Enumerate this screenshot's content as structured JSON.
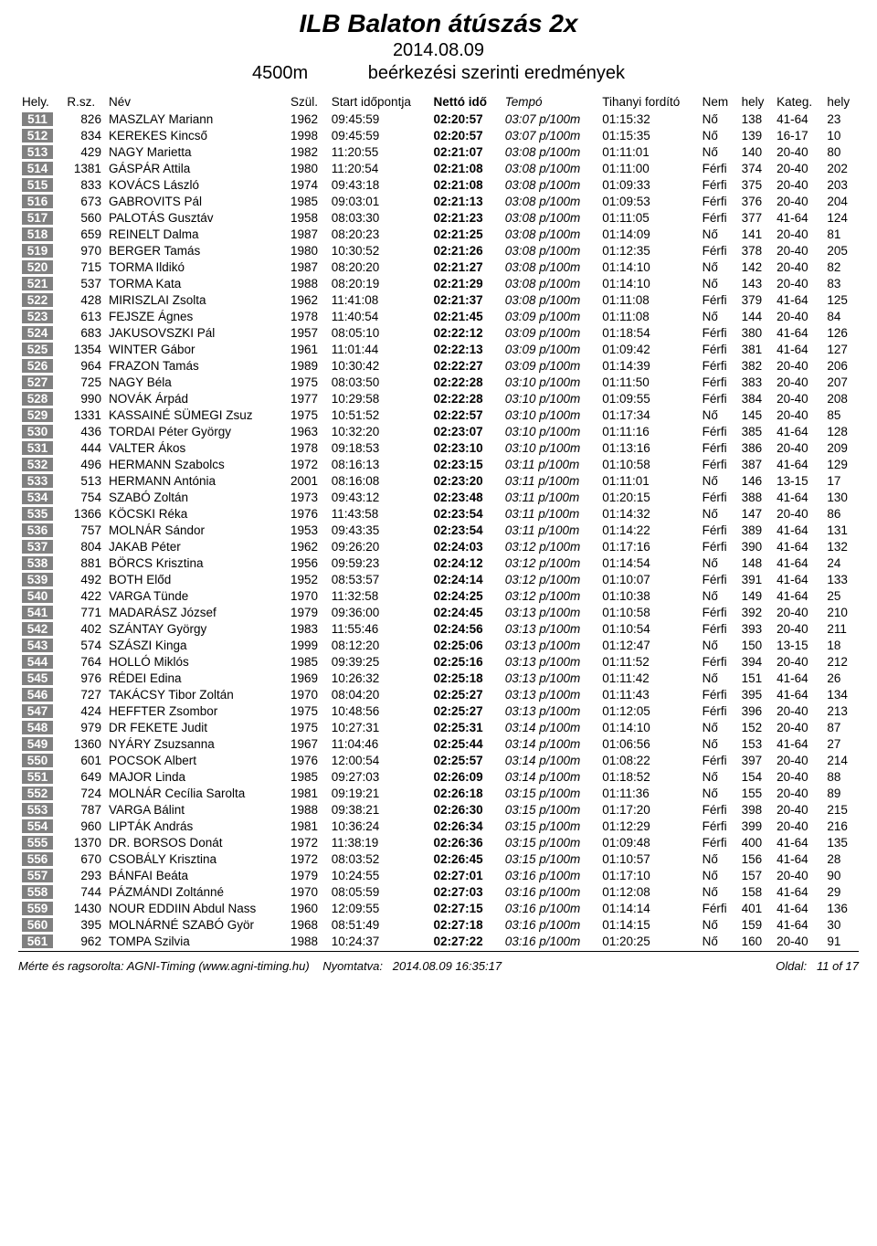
{
  "header": {
    "title": "ILB Balaton átúszás 2x",
    "date": "2014.08.09",
    "distance": "4500m",
    "subtitle": "beérkezési szerinti eredmények"
  },
  "columns": {
    "hely": "Hely.",
    "rsz": "R.sz.",
    "nev": "Név",
    "szul": "Szül.",
    "start": "Start időpontja",
    "netto": "Nettó idő",
    "tempo": "Tempó",
    "tihanyi": "Tihanyi fordító",
    "nem": "Nem",
    "helykat": "hely",
    "kateg": "Kateg.",
    "kateghely": "hely"
  },
  "styling": {
    "badge_bg": "#808080",
    "badge_fg": "#ffffff",
    "body_bg": "#ffffff",
    "text_color": "#000000",
    "title_fontsize": 28,
    "row_fontsize": 13.5,
    "font_family": "Arial"
  },
  "rows": [
    {
      "p": "511",
      "r": "826",
      "n": "MASZLAY Mariann",
      "y": "1962",
      "s": "09:45:59",
      "net": "02:20:57",
      "tmp": "03:07 p/100m",
      "ti": "01:15:32",
      "sex": "Nő",
      "sh": "138",
      "k": "41-64",
      "kh": "23"
    },
    {
      "p": "512",
      "r": "834",
      "n": "KEREKES Kincső",
      "y": "1998",
      "s": "09:45:59",
      "net": "02:20:57",
      "tmp": "03:07 p/100m",
      "ti": "01:15:35",
      "sex": "Nő",
      "sh": "139",
      "k": "16-17",
      "kh": "10"
    },
    {
      "p": "513",
      "r": "429",
      "n": "NAGY Marietta",
      "y": "1982",
      "s": "11:20:55",
      "net": "02:21:07",
      "tmp": "03:08 p/100m",
      "ti": "01:11:01",
      "sex": "Nő",
      "sh": "140",
      "k": "20-40",
      "kh": "80"
    },
    {
      "p": "514",
      "r": "1381",
      "n": "GÁSPÁR Attila",
      "y": "1980",
      "s": "11:20:54",
      "net": "02:21:08",
      "tmp": "03:08 p/100m",
      "ti": "01:11:00",
      "sex": "Férfi",
      "sh": "374",
      "k": "20-40",
      "kh": "202"
    },
    {
      "p": "515",
      "r": "833",
      "n": "KOVÁCS László",
      "y": "1974",
      "s": "09:43:18",
      "net": "02:21:08",
      "tmp": "03:08 p/100m",
      "ti": "01:09:33",
      "sex": "Férfi",
      "sh": "375",
      "k": "20-40",
      "kh": "203"
    },
    {
      "p": "516",
      "r": "673",
      "n": "GABROVITS Pál",
      "y": "1985",
      "s": "09:03:01",
      "net": "02:21:13",
      "tmp": "03:08 p/100m",
      "ti": "01:09:53",
      "sex": "Férfi",
      "sh": "376",
      "k": "20-40",
      "kh": "204"
    },
    {
      "p": "517",
      "r": "560",
      "n": "PALOTÁS Gusztáv",
      "y": "1958",
      "s": "08:03:30",
      "net": "02:21:23",
      "tmp": "03:08 p/100m",
      "ti": "01:11:05",
      "sex": "Férfi",
      "sh": "377",
      "k": "41-64",
      "kh": "124"
    },
    {
      "p": "518",
      "r": "659",
      "n": "REINELT Dalma",
      "y": "1987",
      "s": "08:20:23",
      "net": "02:21:25",
      "tmp": "03:08 p/100m",
      "ti": "01:14:09",
      "sex": "Nő",
      "sh": "141",
      "k": "20-40",
      "kh": "81"
    },
    {
      "p": "519",
      "r": "970",
      "n": "BERGER Tamás",
      "y": "1980",
      "s": "10:30:52",
      "net": "02:21:26",
      "tmp": "03:08 p/100m",
      "ti": "01:12:35",
      "sex": "Férfi",
      "sh": "378",
      "k": "20-40",
      "kh": "205"
    },
    {
      "p": "520",
      "r": "715",
      "n": "TORMA Ildikó",
      "y": "1987",
      "s": "08:20:20",
      "net": "02:21:27",
      "tmp": "03:08 p/100m",
      "ti": "01:14:10",
      "sex": "Nő",
      "sh": "142",
      "k": "20-40",
      "kh": "82"
    },
    {
      "p": "521",
      "r": "537",
      "n": "TORMA Kata",
      "y": "1988",
      "s": "08:20:19",
      "net": "02:21:29",
      "tmp": "03:08 p/100m",
      "ti": "01:14:10",
      "sex": "Nő",
      "sh": "143",
      "k": "20-40",
      "kh": "83"
    },
    {
      "p": "522",
      "r": "428",
      "n": "MIRISZLAI Zsolta",
      "y": "1962",
      "s": "11:41:08",
      "net": "02:21:37",
      "tmp": "03:08 p/100m",
      "ti": "01:11:08",
      "sex": "Férfi",
      "sh": "379",
      "k": "41-64",
      "kh": "125"
    },
    {
      "p": "523",
      "r": "613",
      "n": "FEJSZE Ágnes",
      "y": "1978",
      "s": "11:40:54",
      "net": "02:21:45",
      "tmp": "03:09 p/100m",
      "ti": "01:11:08",
      "sex": "Nő",
      "sh": "144",
      "k": "20-40",
      "kh": "84"
    },
    {
      "p": "524",
      "r": "683",
      "n": "JAKUSOVSZKI Pál",
      "y": "1957",
      "s": "08:05:10",
      "net": "02:22:12",
      "tmp": "03:09 p/100m",
      "ti": "01:18:54",
      "sex": "Férfi",
      "sh": "380",
      "k": "41-64",
      "kh": "126"
    },
    {
      "p": "525",
      "r": "1354",
      "n": "WINTER Gábor",
      "y": "1961",
      "s": "11:01:44",
      "net": "02:22:13",
      "tmp": "03:09 p/100m",
      "ti": "01:09:42",
      "sex": "Férfi",
      "sh": "381",
      "k": "41-64",
      "kh": "127"
    },
    {
      "p": "526",
      "r": "964",
      "n": "FRAZON Tamás",
      "y": "1989",
      "s": "10:30:42",
      "net": "02:22:27",
      "tmp": "03:09 p/100m",
      "ti": "01:14:39",
      "sex": "Férfi",
      "sh": "382",
      "k": "20-40",
      "kh": "206"
    },
    {
      "p": "527",
      "r": "725",
      "n": "NAGY Béla",
      "y": "1975",
      "s": "08:03:50",
      "net": "02:22:28",
      "tmp": "03:10 p/100m",
      "ti": "01:11:50",
      "sex": "Férfi",
      "sh": "383",
      "k": "20-40",
      "kh": "207"
    },
    {
      "p": "528",
      "r": "990",
      "n": "NOVÁK Árpád",
      "y": "1977",
      "s": "10:29:58",
      "net": "02:22:28",
      "tmp": "03:10 p/100m",
      "ti": "01:09:55",
      "sex": "Férfi",
      "sh": "384",
      "k": "20-40",
      "kh": "208"
    },
    {
      "p": "529",
      "r": "1331",
      "n": "KASSAINÉ SÜMEGI Zsuz",
      "y": "1975",
      "s": "10:51:52",
      "net": "02:22:57",
      "tmp": "03:10 p/100m",
      "ti": "01:17:34",
      "sex": "Nő",
      "sh": "145",
      "k": "20-40",
      "kh": "85"
    },
    {
      "p": "530",
      "r": "436",
      "n": "TORDAI Péter György",
      "y": "1963",
      "s": "10:32:20",
      "net": "02:23:07",
      "tmp": "03:10 p/100m",
      "ti": "01:11:16",
      "sex": "Férfi",
      "sh": "385",
      "k": "41-64",
      "kh": "128"
    },
    {
      "p": "531",
      "r": "444",
      "n": "VALTER Ákos",
      "y": "1978",
      "s": "09:18:53",
      "net": "02:23:10",
      "tmp": "03:10 p/100m",
      "ti": "01:13:16",
      "sex": "Férfi",
      "sh": "386",
      "k": "20-40",
      "kh": "209"
    },
    {
      "p": "532",
      "r": "496",
      "n": "HERMANN Szabolcs",
      "y": "1972",
      "s": "08:16:13",
      "net": "02:23:15",
      "tmp": "03:11 p/100m",
      "ti": "01:10:58",
      "sex": "Férfi",
      "sh": "387",
      "k": "41-64",
      "kh": "129"
    },
    {
      "p": "533",
      "r": "513",
      "n": "HERMANN Antónia",
      "y": "2001",
      "s": "08:16:08",
      "net": "02:23:20",
      "tmp": "03:11 p/100m",
      "ti": "01:11:01",
      "sex": "Nő",
      "sh": "146",
      "k": "13-15",
      "kh": "17"
    },
    {
      "p": "534",
      "r": "754",
      "n": "SZABÓ Zoltán",
      "y": "1973",
      "s": "09:43:12",
      "net": "02:23:48",
      "tmp": "03:11 p/100m",
      "ti": "01:20:15",
      "sex": "Férfi",
      "sh": "388",
      "k": "41-64",
      "kh": "130"
    },
    {
      "p": "535",
      "r": "1366",
      "n": "KÖCSKI Réka",
      "y": "1976",
      "s": "11:43:58",
      "net": "02:23:54",
      "tmp": "03:11 p/100m",
      "ti": "01:14:32",
      "sex": "Nő",
      "sh": "147",
      "k": "20-40",
      "kh": "86"
    },
    {
      "p": "536",
      "r": "757",
      "n": "MOLNÁR Sándor",
      "y": "1953",
      "s": "09:43:35",
      "net": "02:23:54",
      "tmp": "03:11 p/100m",
      "ti": "01:14:22",
      "sex": "Férfi",
      "sh": "389",
      "k": "41-64",
      "kh": "131"
    },
    {
      "p": "537",
      "r": "804",
      "n": "JAKAB Péter",
      "y": "1962",
      "s": "09:26:20",
      "net": "02:24:03",
      "tmp": "03:12 p/100m",
      "ti": "01:17:16",
      "sex": "Férfi",
      "sh": "390",
      "k": "41-64",
      "kh": "132"
    },
    {
      "p": "538",
      "r": "881",
      "n": "BÖRCS Krisztina",
      "y": "1956",
      "s": "09:59:23",
      "net": "02:24:12",
      "tmp": "03:12 p/100m",
      "ti": "01:14:54",
      "sex": "Nő",
      "sh": "148",
      "k": "41-64",
      "kh": "24"
    },
    {
      "p": "539",
      "r": "492",
      "n": "BOTH Előd",
      "y": "1952",
      "s": "08:53:57",
      "net": "02:24:14",
      "tmp": "03:12 p/100m",
      "ti": "01:10:07",
      "sex": "Férfi",
      "sh": "391",
      "k": "41-64",
      "kh": "133"
    },
    {
      "p": "540",
      "r": "422",
      "n": "VARGA Tünde",
      "y": "1970",
      "s": "11:32:58",
      "net": "02:24:25",
      "tmp": "03:12 p/100m",
      "ti": "01:10:38",
      "sex": "Nő",
      "sh": "149",
      "k": "41-64",
      "kh": "25"
    },
    {
      "p": "541",
      "r": "771",
      "n": "MADARÁSZ József",
      "y": "1979",
      "s": "09:36:00",
      "net": "02:24:45",
      "tmp": "03:13 p/100m",
      "ti": "01:10:58",
      "sex": "Férfi",
      "sh": "392",
      "k": "20-40",
      "kh": "210"
    },
    {
      "p": "542",
      "r": "402",
      "n": "SZÁNTAY György",
      "y": "1983",
      "s": "11:55:46",
      "net": "02:24:56",
      "tmp": "03:13 p/100m",
      "ti": "01:10:54",
      "sex": "Férfi",
      "sh": "393",
      "k": "20-40",
      "kh": "211"
    },
    {
      "p": "543",
      "r": "574",
      "n": "SZÁSZI Kinga",
      "y": "1999",
      "s": "08:12:20",
      "net": "02:25:06",
      "tmp": "03:13 p/100m",
      "ti": "01:12:47",
      "sex": "Nő",
      "sh": "150",
      "k": "13-15",
      "kh": "18"
    },
    {
      "p": "544",
      "r": "764",
      "n": "HOLLÓ Miklós",
      "y": "1985",
      "s": "09:39:25",
      "net": "02:25:16",
      "tmp": "03:13 p/100m",
      "ti": "01:11:52",
      "sex": "Férfi",
      "sh": "394",
      "k": "20-40",
      "kh": "212"
    },
    {
      "p": "545",
      "r": "976",
      "n": "RÉDEI Edina",
      "y": "1969",
      "s": "10:26:32",
      "net": "02:25:18",
      "tmp": "03:13 p/100m",
      "ti": "01:11:42",
      "sex": "Nő",
      "sh": "151",
      "k": "41-64",
      "kh": "26"
    },
    {
      "p": "546",
      "r": "727",
      "n": "TAKÁCSY Tibor Zoltán",
      "y": "1970",
      "s": "08:04:20",
      "net": "02:25:27",
      "tmp": "03:13 p/100m",
      "ti": "01:11:43",
      "sex": "Férfi",
      "sh": "395",
      "k": "41-64",
      "kh": "134"
    },
    {
      "p": "547",
      "r": "424",
      "n": "HEFFTER Zsombor",
      "y": "1975",
      "s": "10:48:56",
      "net": "02:25:27",
      "tmp": "03:13 p/100m",
      "ti": "01:12:05",
      "sex": "Férfi",
      "sh": "396",
      "k": "20-40",
      "kh": "213"
    },
    {
      "p": "548",
      "r": "979",
      "n": "DR FEKETE Judit",
      "y": "1975",
      "s": "10:27:31",
      "net": "02:25:31",
      "tmp": "03:14 p/100m",
      "ti": "01:14:10",
      "sex": "Nő",
      "sh": "152",
      "k": "20-40",
      "kh": "87"
    },
    {
      "p": "549",
      "r": "1360",
      "n": "NYÁRY Zsuzsanna",
      "y": "1967",
      "s": "11:04:46",
      "net": "02:25:44",
      "tmp": "03:14 p/100m",
      "ti": "01:06:56",
      "sex": "Nő",
      "sh": "153",
      "k": "41-64",
      "kh": "27"
    },
    {
      "p": "550",
      "r": "601",
      "n": "POCSOK Albert",
      "y": "1976",
      "s": "12:00:54",
      "net": "02:25:57",
      "tmp": "03:14 p/100m",
      "ti": "01:08:22",
      "sex": "Férfi",
      "sh": "397",
      "k": "20-40",
      "kh": "214"
    },
    {
      "p": "551",
      "r": "649",
      "n": "MAJOR Linda",
      "y": "1985",
      "s": "09:27:03",
      "net": "02:26:09",
      "tmp": "03:14 p/100m",
      "ti": "01:18:52",
      "sex": "Nő",
      "sh": "154",
      "k": "20-40",
      "kh": "88"
    },
    {
      "p": "552",
      "r": "724",
      "n": "MOLNÁR Cecília Sarolta",
      "y": "1981",
      "s": "09:19:21",
      "net": "02:26:18",
      "tmp": "03:15 p/100m",
      "ti": "01:11:36",
      "sex": "Nő",
      "sh": "155",
      "k": "20-40",
      "kh": "89"
    },
    {
      "p": "553",
      "r": "787",
      "n": "VARGA Bálint",
      "y": "1988",
      "s": "09:38:21",
      "net": "02:26:30",
      "tmp": "03:15 p/100m",
      "ti": "01:17:20",
      "sex": "Férfi",
      "sh": "398",
      "k": "20-40",
      "kh": "215"
    },
    {
      "p": "554",
      "r": "960",
      "n": "LIPTÁK András",
      "y": "1981",
      "s": "10:36:24",
      "net": "02:26:34",
      "tmp": "03:15 p/100m",
      "ti": "01:12:29",
      "sex": "Férfi",
      "sh": "399",
      "k": "20-40",
      "kh": "216"
    },
    {
      "p": "555",
      "r": "1370",
      "n": "DR. BORSOS Donát",
      "y": "1972",
      "s": "11:38:19",
      "net": "02:26:36",
      "tmp": "03:15 p/100m",
      "ti": "01:09:48",
      "sex": "Férfi",
      "sh": "400",
      "k": "41-64",
      "kh": "135"
    },
    {
      "p": "556",
      "r": "670",
      "n": "CSOBÁLY Krisztina",
      "y": "1972",
      "s": "08:03:52",
      "net": "02:26:45",
      "tmp": "03:15 p/100m",
      "ti": "01:10:57",
      "sex": "Nő",
      "sh": "156",
      "k": "41-64",
      "kh": "28"
    },
    {
      "p": "557",
      "r": "293",
      "n": "BÁNFAI Beáta",
      "y": "1979",
      "s": "10:24:55",
      "net": "02:27:01",
      "tmp": "03:16 p/100m",
      "ti": "01:17:10",
      "sex": "Nő",
      "sh": "157",
      "k": "20-40",
      "kh": "90"
    },
    {
      "p": "558",
      "r": "744",
      "n": "PÁZMÁNDI Zoltánné",
      "y": "1970",
      "s": "08:05:59",
      "net": "02:27:03",
      "tmp": "03:16 p/100m",
      "ti": "01:12:08",
      "sex": "Nő",
      "sh": "158",
      "k": "41-64",
      "kh": "29"
    },
    {
      "p": "559",
      "r": "1430",
      "n": "NOUR EDDIIN Abdul Nass",
      "y": "1960",
      "s": "12:09:55",
      "net": "02:27:15",
      "tmp": "03:16 p/100m",
      "ti": "01:14:14",
      "sex": "Férfi",
      "sh": "401",
      "k": "41-64",
      "kh": "136"
    },
    {
      "p": "560",
      "r": "395",
      "n": "MOLNÁRNÉ SZABÓ Györ",
      "y": "1968",
      "s": "08:51:49",
      "net": "02:27:18",
      "tmp": "03:16 p/100m",
      "ti": "01:14:15",
      "sex": "Nő",
      "sh": "159",
      "k": "41-64",
      "kh": "30"
    },
    {
      "p": "561",
      "r": "962",
      "n": "TOMPA Szilvia",
      "y": "1988",
      "s": "10:24:37",
      "net": "02:27:22",
      "tmp": "03:16 p/100m",
      "ti": "01:20:25",
      "sex": "Nő",
      "sh": "160",
      "k": "20-40",
      "kh": "91"
    }
  ],
  "footer": {
    "left": "Mérte és ragsorolta: AGNI-Timing  (www.agni-timing.hu)",
    "mid_label": "Nyomtatva:",
    "mid_value": "2014.08.09 16:35:17",
    "page_label": "Oldal:",
    "page_value": "11 of 17"
  }
}
